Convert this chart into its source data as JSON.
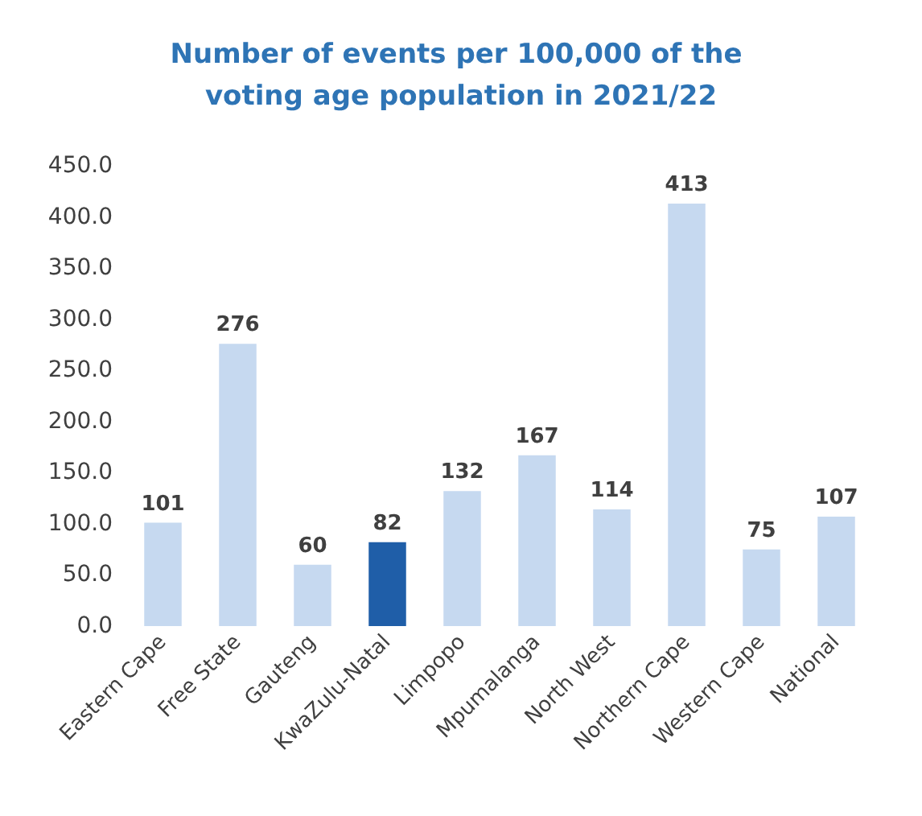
{
  "chart_data": {
    "type": "bar",
    "title": "Number of events per 100,000 of the voting age population in 2021/22",
    "categories": [
      "Eastern Cape",
      "Free State",
      "Gauteng",
      "KwaZulu-Natal",
      "Limpopo",
      "Mpumalanga",
      "North West",
      "Northern Cape",
      "Western Cape",
      "National"
    ],
    "values": [
      101,
      276,
      60,
      82,
      132,
      167,
      114,
      413,
      75,
      107
    ],
    "colors": [
      "#c6d9f0",
      "#c6d9f0",
      "#c6d9f0",
      "#1f5ea8",
      "#c6d9f0",
      "#c6d9f0",
      "#c6d9f0",
      "#c6d9f0",
      "#c6d9f0",
      "#c6d9f0"
    ],
    "ylim": [
      0,
      450
    ],
    "yticks": [
      {
        "value": 0,
        "label": "0.0"
      },
      {
        "value": 50,
        "label": "50.0"
      },
      {
        "value": 100,
        "label": "100.0"
      },
      {
        "value": 150,
        "label": "150.0"
      },
      {
        "value": 200,
        "label": "200.0"
      },
      {
        "value": 250,
        "label": "250.0"
      },
      {
        "value": 300,
        "label": "300.0"
      },
      {
        "value": 350,
        "label": "350.0"
      },
      {
        "value": 400,
        "label": "400.0"
      },
      {
        "value": 450,
        "label": "450.0"
      }
    ],
    "data_labels": true,
    "grid": false
  }
}
